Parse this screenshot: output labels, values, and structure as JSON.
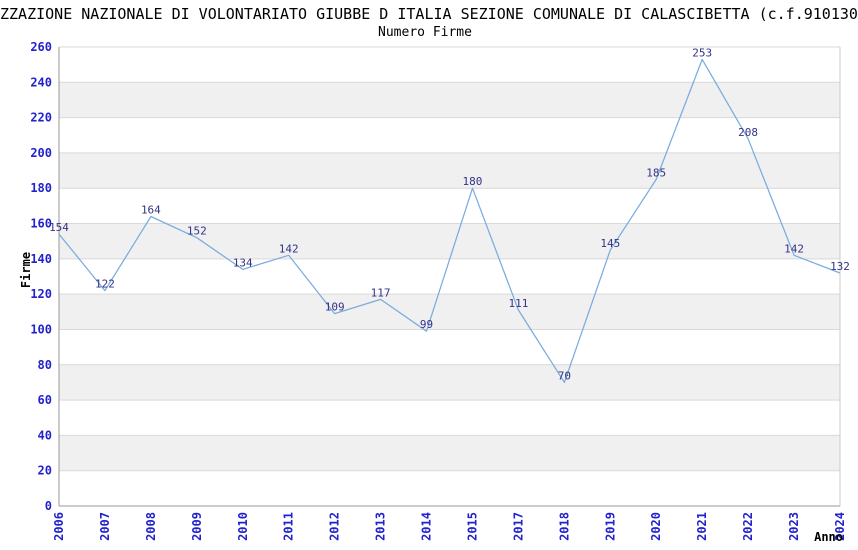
{
  "header": {
    "title": "ZZAZIONE NAZIONALE DI VOLONTARIATO GIUBBE D ITALIA SEZIONE COMUNALE DI CALASCIBETTA (c.f.910130",
    "subtitle": "Numero Firme"
  },
  "chart_data": {
    "type": "line",
    "title": "Numero Firme",
    "xlabel": "Anno",
    "ylabel": "Firme",
    "categories": [
      "2006",
      "2007",
      "2008",
      "2009",
      "2010",
      "2011",
      "2012",
      "2013",
      "2014",
      "2015",
      "2017",
      "2018",
      "2019",
      "2020",
      "2021",
      "2022",
      "2023",
      "2024"
    ],
    "series": [
      {
        "name": "Firme",
        "values": [
          154,
          122,
          164,
          152,
          134,
          142,
          109,
          117,
          99,
          180,
          111,
          70,
          145,
          185,
          253,
          208,
          142,
          132
        ]
      }
    ],
    "point_labels": true,
    "ylim": [
      0,
      260
    ],
    "ytick_step": 20,
    "grid": "horizontal gridlines every 20 with alternating gray bands (20-40, 60-80, 100-120, 140-160, 180-200, 220-240)",
    "legend": "none",
    "x_axis_note": "year 2016 is absent from the axis"
  },
  "colors": {
    "background": "#ffffff",
    "line": "#7aacdf",
    "tick_label": "#2222cc",
    "point_label": "#333388",
    "band": "#f0f0f0",
    "gridline": "#d9d9d9",
    "axis": "#999999",
    "plot_border_right": "#cccccc",
    "text": "#000000"
  }
}
